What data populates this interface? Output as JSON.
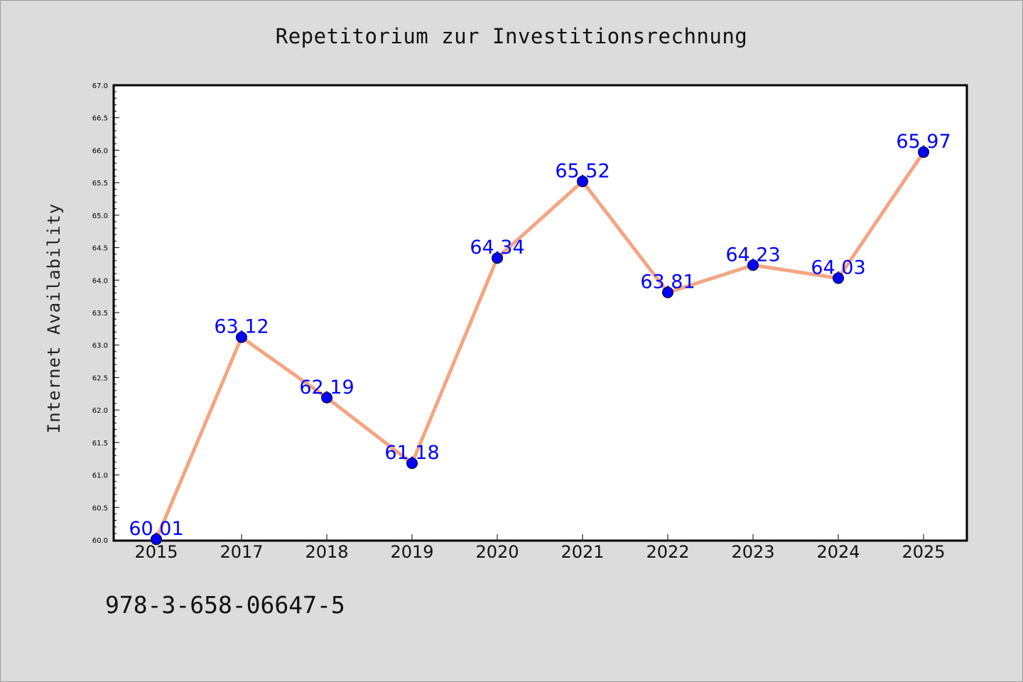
{
  "chart_data": {
    "type": "line",
    "title": "Repetitorium zur Investitionsrechnung",
    "xlabel": "",
    "ylabel": "Internet Availability",
    "categories": [
      "2015",
      "2017",
      "2018",
      "2019",
      "2020",
      "2021",
      "2022",
      "2023",
      "2024",
      "2025"
    ],
    "values": [
      60.01,
      63.12,
      62.19,
      61.18,
      64.34,
      65.52,
      63.81,
      64.23,
      64.03,
      65.97
    ],
    "data_labels": [
      "60.01",
      "63.12",
      "62.19",
      "61.18",
      "64.34",
      "65.52",
      "63.81",
      "64.23",
      "64.03",
      "65.97"
    ],
    "ylim": [
      60.0,
      67.0
    ],
    "y_ticks": [
      "60.0",
      "60.5",
      "61.0",
      "61.5",
      "62.0",
      "62.5",
      "63.0",
      "63.5",
      "64.0",
      "64.5",
      "65.0",
      "65.5",
      "66.0",
      "66.5",
      "67.0"
    ],
    "grid": false,
    "line_color": "#f4a582",
    "marker_color": "#0000ff",
    "label_color": "#0000ff",
    "plot_background": "#ffffff",
    "page_background": "#dcdcdc"
  },
  "footer": {
    "isbn": "978-3-658-06647-5"
  }
}
